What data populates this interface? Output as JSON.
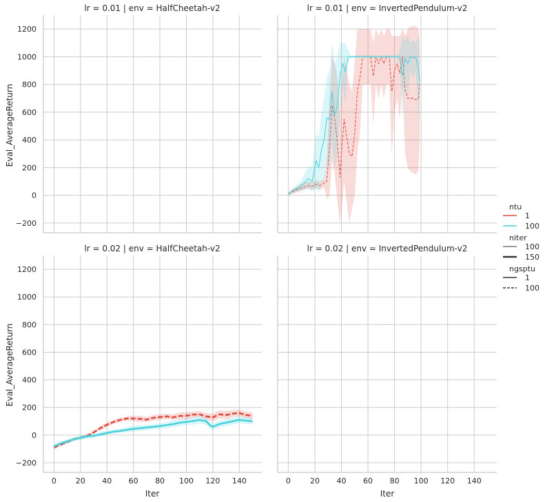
{
  "chart_data": {
    "type": "line",
    "facet_rows": "lr",
    "facet_cols": "env",
    "x_label": "Iter",
    "y_label": "Eval_AverageReturn",
    "x_ticks": [
      "0",
      "20",
      "40",
      "60",
      "80",
      "100",
      "120",
      "140"
    ],
    "y_ticks": [
      "−200",
      "0",
      "200",
      "400",
      "600",
      "800",
      "1000",
      "1200"
    ],
    "xlim": [
      -8,
      157
    ],
    "ylim": [
      -270,
      1300
    ],
    "grid": true,
    "legend": {
      "placement": "right",
      "groups": [
        {
          "title": "ntu",
          "entries": [
            {
              "label": "1",
              "color": "#e24a3f",
              "width": 1.5,
              "dash": "solid"
            },
            {
              "label": "100",
              "color": "#47d2dc",
              "width": 1.5,
              "dash": "solid"
            }
          ]
        },
        {
          "title": "niter",
          "entries": [
            {
              "label": "100",
              "color": "#333333",
              "width": 1.0,
              "dash": "solid"
            },
            {
              "label": "150",
              "color": "#333333",
              "width": 2.6,
              "dash": "solid"
            }
          ]
        },
        {
          "title": "ngsptu",
          "entries": [
            {
              "label": "1",
              "color": "#333333",
              "width": 1.5,
              "dash": "solid"
            },
            {
              "label": "100",
              "color": "#333333",
              "width": 1.5,
              "dash": "dashed"
            }
          ]
        }
      ]
    },
    "panels": [
      {
        "title": "lr = 0.01 | env = HalfCheetah-v2",
        "series": []
      },
      {
        "title": "lr = 0.01 | env = InvertedPendulum-v2",
        "series": [
          {
            "name": "ntu=1, niter=100, ngsptu=100",
            "color": "#e24a3f",
            "width": 1.0,
            "dash": "dashed",
            "x": [
              0,
              3,
              6,
              9,
              12,
              15,
              18,
              21,
              24,
              27,
              29,
              31,
              33,
              35,
              37,
              39,
              40,
              42,
              44,
              46,
              48,
              50,
              52,
              54,
              56,
              58,
              60,
              62,
              64,
              66,
              68,
              70,
              72,
              74,
              76,
              78,
              80,
              82,
              84,
              86,
              88,
              90,
              92,
              94,
              96,
              98,
              99
            ],
            "y": [
              10,
              25,
              40,
              50,
              60,
              70,
              65,
              80,
              70,
              90,
              100,
              350,
              650,
              550,
              380,
              130,
              300,
              550,
              420,
              300,
              280,
              450,
              750,
              850,
              1000,
              1000,
              1000,
              1000,
              860,
              1000,
              950,
              1000,
              950,
              1000,
              1000,
              750,
              900,
              950,
              880,
              1000,
              760,
              700,
              700,
              700,
              690,
              700,
              810
            ],
            "band": [
              [
                0,
                20
              ],
              [
                10,
                45
              ],
              [
                20,
                65
              ],
              [
                30,
                80
              ],
              [
                40,
                90
              ],
              [
                50,
                100
              ],
              [
                40,
                95
              ],
              [
                55,
                110
              ],
              [
                40,
                100
              ],
              [
                60,
                120
              ],
              [
                -30,
                260
              ],
              [
                0,
                700
              ],
              [
                250,
                1000
              ],
              [
                150,
                950
              ],
              [
                -50,
                850
              ],
              [
                -200,
                550
              ],
              [
                -120,
                800
              ],
              [
                100,
                1000
              ],
              [
                -50,
                900
              ],
              [
                -200,
                800
              ],
              [
                -100,
                750
              ],
              [
                0,
                950
              ],
              [
                300,
                1200
              ],
              [
                450,
                1200
              ],
              [
                800,
                1200
              ],
              [
                800,
                1200
              ],
              [
                800,
                1200
              ],
              [
                800,
                1200
              ],
              [
                500,
                1100
              ],
              [
                800,
                1200
              ],
              [
                700,
                1150
              ],
              [
                800,
                1200
              ],
              [
                700,
                1150
              ],
              [
                800,
                1200
              ],
              [
                800,
                1200
              ],
              [
                300,
                1150
              ],
              [
                600,
                1150
              ],
              [
                700,
                1150
              ],
              [
                550,
                1150
              ],
              [
                800,
                1200
              ],
              [
                300,
                1150
              ],
              [
                200,
                1200
              ],
              [
                170,
                1220
              ],
              [
                160,
                1220
              ],
              [
                150,
                1220
              ],
              [
                180,
                1200
              ],
              [
                400,
                1150
              ]
            ]
          },
          {
            "name": "ntu=100, niter=100, ngsptu=1",
            "color": "#47d2dc",
            "width": 1.0,
            "dash": "solid",
            "x": [
              0,
              3,
              6,
              9,
              12,
              15,
              18,
              21,
              23,
              25,
              27,
              29,
              31,
              33,
              35,
              37,
              39,
              41,
              43,
              45,
              47,
              49,
              52,
              55,
              58,
              62,
              66,
              70,
              74,
              78,
              82,
              84,
              86,
              88,
              90,
              92,
              94,
              96,
              98,
              99
            ],
            "y": [
              10,
              30,
              45,
              60,
              90,
              120,
              100,
              250,
              200,
              330,
              400,
              560,
              550,
              750,
              580,
              650,
              870,
              950,
              890,
              1000,
              1000,
              1000,
              1000,
              1000,
              1000,
              1000,
              1000,
              1000,
              1000,
              1000,
              1000,
              1000,
              860,
              990,
              950,
              1000,
              990,
              1000,
              920,
              820
            ],
            "band": [
              [
                0,
                20
              ],
              [
                15,
                45
              ],
              [
                25,
                70
              ],
              [
                30,
                95
              ],
              [
                40,
                150
              ],
              [
                50,
                210
              ],
              [
                30,
                200
              ],
              [
                50,
                450
              ],
              [
                20,
                420
              ],
              [
                100,
                600
              ],
              [
                100,
                700
              ],
              [
                250,
                850
              ],
              [
                200,
                900
              ],
              [
                400,
                1100
              ],
              [
                200,
                950
              ],
              [
                300,
                1000
              ],
              [
                600,
                1100
              ],
              [
                800,
                1100
              ],
              [
                650,
                1100
              ],
              [
                950,
                1050
              ],
              [
                990,
                1010
              ],
              [
                990,
                1010
              ],
              [
                990,
                1010
              ],
              [
                990,
                1010
              ],
              [
                990,
                1010
              ],
              [
                990,
                1010
              ],
              [
                990,
                1010
              ],
              [
                990,
                1010
              ],
              [
                990,
                1010
              ],
              [
                990,
                1010
              ],
              [
                990,
                1010
              ],
              [
                950,
                1050
              ],
              [
                550,
                1150
              ],
              [
                850,
                1120
              ],
              [
                700,
                1150
              ],
              [
                900,
                1100
              ],
              [
                850,
                1120
              ],
              [
                900,
                1100
              ],
              [
                600,
                1150
              ],
              [
                500,
                1050
              ]
            ]
          }
        ]
      },
      {
        "title": "lr = 0.02 | env = HalfCheetah-v2",
        "series": [
          {
            "name": "ntu=1, niter=150, ngsptu=100",
            "color": "#e24a3f",
            "width": 2.6,
            "dash": "dashed",
            "x": [
              0,
              5,
              10,
              15,
              20,
              25,
              30,
              35,
              40,
              45,
              50,
              55,
              60,
              65,
              70,
              75,
              80,
              85,
              90,
              95,
              100,
              105,
              110,
              115,
              120,
              125,
              130,
              135,
              140,
              145,
              150
            ],
            "y": [
              -90,
              -70,
              -50,
              -30,
              -20,
              -5,
              20,
              50,
              75,
              95,
              110,
              120,
              120,
              118,
              112,
              125,
              130,
              135,
              128,
              138,
              140,
              148,
              150,
              135,
              128,
              150,
              145,
              155,
              160,
              145,
              140
            ],
            "band": [
              [
                -100,
                -80
              ],
              [
                -80,
                -60
              ],
              [
                -60,
                -40
              ],
              [
                -40,
                -20
              ],
              [
                -30,
                -10
              ],
              [
                -15,
                5
              ],
              [
                10,
                30
              ],
              [
                35,
                65
              ],
              [
                60,
                90
              ],
              [
                80,
                110
              ],
              [
                95,
                125
              ],
              [
                105,
                135
              ],
              [
                100,
                140
              ],
              [
                95,
                140
              ],
              [
                95,
                130
              ],
              [
                105,
                145
              ],
              [
                110,
                150
              ],
              [
                115,
                155
              ],
              [
                110,
                150
              ],
              [
                115,
                165
              ],
              [
                115,
                165
              ],
              [
                125,
                170
              ],
              [
                130,
                175
              ],
              [
                110,
                160
              ],
              [
                100,
                155
              ],
              [
                120,
                180
              ],
              [
                115,
                175
              ],
              [
                130,
                180
              ],
              [
                135,
                185
              ],
              [
                120,
                170
              ],
              [
                115,
                165
              ]
            ]
          },
          {
            "name": "ntu=100, niter=150, ngsptu=1",
            "color": "#47d2dc",
            "width": 2.6,
            "dash": "solid",
            "x": [
              0,
              5,
              10,
              15,
              20,
              25,
              30,
              35,
              40,
              45,
              50,
              55,
              60,
              65,
              70,
              75,
              80,
              85,
              90,
              95,
              100,
              105,
              110,
              115,
              118,
              120,
              125,
              130,
              135,
              140,
              145,
              150
            ],
            "y": [
              -80,
              -60,
              -45,
              -30,
              -20,
              -10,
              -5,
              5,
              15,
              25,
              30,
              38,
              45,
              50,
              55,
              60,
              65,
              72,
              80,
              90,
              95,
              102,
              110,
              100,
              70,
              60,
              80,
              90,
              100,
              110,
              105,
              100
            ],
            "band": [
              [
                -95,
                -65
              ],
              [
                -75,
                -45
              ],
              [
                -60,
                -30
              ],
              [
                -45,
                -15
              ],
              [
                -35,
                -5
              ],
              [
                -25,
                5
              ],
              [
                -20,
                10
              ],
              [
                -10,
                20
              ],
              [
                0,
                30
              ],
              [
                10,
                40
              ],
              [
                15,
                45
              ],
              [
                20,
                56
              ],
              [
                25,
                65
              ],
              [
                30,
                70
              ],
              [
                35,
                75
              ],
              [
                40,
                80
              ],
              [
                45,
                85
              ],
              [
                50,
                95
              ],
              [
                55,
                105
              ],
              [
                65,
                115
              ],
              [
                70,
                120
              ],
              [
                75,
                130
              ],
              [
                85,
                135
              ],
              [
                75,
                125
              ],
              [
                45,
                95
              ],
              [
                35,
                85
              ],
              [
                55,
                105
              ],
              [
                65,
                115
              ],
              [
                75,
                125
              ],
              [
                85,
                135
              ],
              [
                80,
                130
              ],
              [
                75,
                125
              ]
            ]
          }
        ]
      },
      {
        "title": "lr = 0.02 | env = InvertedPendulum-v2",
        "series": []
      }
    ]
  }
}
